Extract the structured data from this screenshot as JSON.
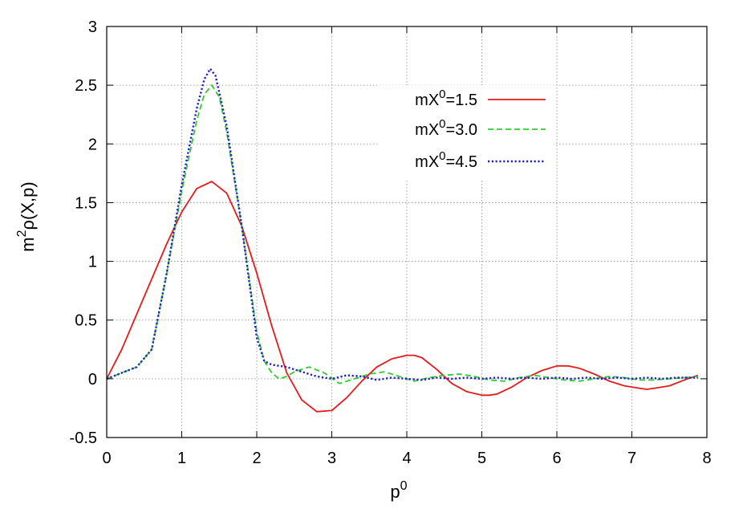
{
  "chart_data": {
    "type": "line",
    "title": "",
    "xlabel": "p",
    "xlabel_sup": "0",
    "ylabel_parts": [
      "m",
      "2",
      "ρ(X,p)"
    ],
    "xlim": [
      0,
      8
    ],
    "ylim": [
      -0.5,
      3
    ],
    "xticks": [
      0,
      1,
      2,
      3,
      4,
      5,
      6,
      7,
      8
    ],
    "xtick_labels": [
      "0",
      "1",
      "2",
      "3",
      "4",
      "5",
      "6",
      "7",
      "8"
    ],
    "yticks": [
      -0.5,
      0,
      0.5,
      1,
      1.5,
      2,
      2.5,
      3
    ],
    "ytick_labels": [
      "-0.5",
      "0",
      "0.5",
      "1",
      "1.5",
      "2",
      "2.5",
      "3"
    ],
    "grid": true,
    "legend_position": "top-right",
    "series": [
      {
        "name_parts": [
          "mX",
          "0",
          "=1.5"
        ],
        "color": "#e41a1c",
        "dash": "solid",
        "x": [
          0,
          0.2,
          0.4,
          0.6,
          0.8,
          1.0,
          1.2,
          1.4,
          1.6,
          1.8,
          2.0,
          2.2,
          2.4,
          2.6,
          2.8,
          3.0,
          3.2,
          3.4,
          3.6,
          3.8,
          4.0,
          4.1,
          4.2,
          4.4,
          4.6,
          4.8,
          5.0,
          5.1,
          5.2,
          5.4,
          5.6,
          5.8,
          6.0,
          6.15,
          6.3,
          6.5,
          6.7,
          6.9,
          7.1,
          7.2,
          7.3,
          7.5,
          7.7,
          7.88
        ],
        "y": [
          0.0,
          0.25,
          0.55,
          0.85,
          1.15,
          1.42,
          1.62,
          1.68,
          1.58,
          1.3,
          0.9,
          0.45,
          0.05,
          -0.18,
          -0.28,
          -0.27,
          -0.16,
          -0.02,
          0.1,
          0.17,
          0.2,
          0.2,
          0.18,
          0.08,
          -0.04,
          -0.11,
          -0.14,
          -0.14,
          -0.13,
          -0.07,
          0.01,
          0.07,
          0.11,
          0.11,
          0.09,
          0.04,
          -0.02,
          -0.06,
          -0.08,
          -0.09,
          -0.08,
          -0.06,
          -0.01,
          0.03
        ]
      },
      {
        "name_parts": [
          "mX",
          "0",
          "=3.0"
        ],
        "color": "#2ecc2e",
        "dash": "dashed",
        "x": [
          0,
          0.2,
          0.4,
          0.6,
          0.8,
          1.0,
          1.2,
          1.3,
          1.4,
          1.5,
          1.6,
          1.8,
          2.0,
          2.1,
          2.2,
          2.3,
          2.4,
          2.5,
          2.7,
          2.9,
          3.1,
          3.3,
          3.5,
          3.7,
          3.9,
          4.1,
          4.3,
          4.5,
          4.7,
          4.9,
          5.1,
          5.3,
          5.5,
          5.7,
          5.9,
          6.1,
          6.3,
          6.5,
          6.7,
          6.9,
          7.1,
          7.3,
          7.5,
          7.7,
          7.88
        ],
        "y": [
          0.0,
          0.05,
          0.1,
          0.25,
          0.9,
          1.6,
          2.2,
          2.42,
          2.5,
          2.4,
          2.1,
          1.3,
          0.4,
          0.15,
          0.05,
          0.0,
          0.02,
          0.06,
          0.1,
          0.05,
          -0.04,
          0.0,
          0.04,
          0.06,
          0.02,
          -0.02,
          0.01,
          0.03,
          0.04,
          0.02,
          -0.01,
          -0.02,
          0.01,
          0.03,
          0.01,
          -0.01,
          -0.02,
          0.0,
          0.02,
          0.01,
          -0.01,
          -0.01,
          0.0,
          0.01,
          0.02
        ]
      },
      {
        "name_parts": [
          "mX",
          "0",
          "=4.5"
        ],
        "color": "#1f1fcc",
        "dash": "dotted",
        "x": [
          0,
          0.2,
          0.4,
          0.6,
          0.8,
          1.0,
          1.2,
          1.3,
          1.38,
          1.45,
          1.6,
          1.8,
          2.0,
          2.1,
          2.2,
          2.4,
          2.6,
          2.8,
          3.0,
          3.2,
          3.4,
          3.6,
          3.8,
          4.0,
          4.2,
          4.4,
          4.6,
          4.8,
          5.0,
          5.2,
          5.4,
          5.6,
          5.8,
          6.0,
          6.2,
          6.4,
          6.6,
          6.8,
          7.0,
          7.2,
          7.4,
          7.6,
          7.88
        ],
        "y": [
          0.0,
          0.05,
          0.1,
          0.25,
          0.9,
          1.65,
          2.3,
          2.55,
          2.64,
          2.58,
          2.15,
          1.3,
          0.35,
          0.15,
          0.12,
          0.1,
          0.06,
          0.02,
          0.0,
          0.03,
          0.02,
          -0.01,
          0.01,
          0.0,
          -0.01,
          0.01,
          0.0,
          0.01,
          0.0,
          0.01,
          0.0,
          0.01,
          0.0,
          0.01,
          0.0,
          0.01,
          0.0,
          0.01,
          0.0,
          0.01,
          0.0,
          0.01,
          0.01
        ]
      }
    ]
  }
}
